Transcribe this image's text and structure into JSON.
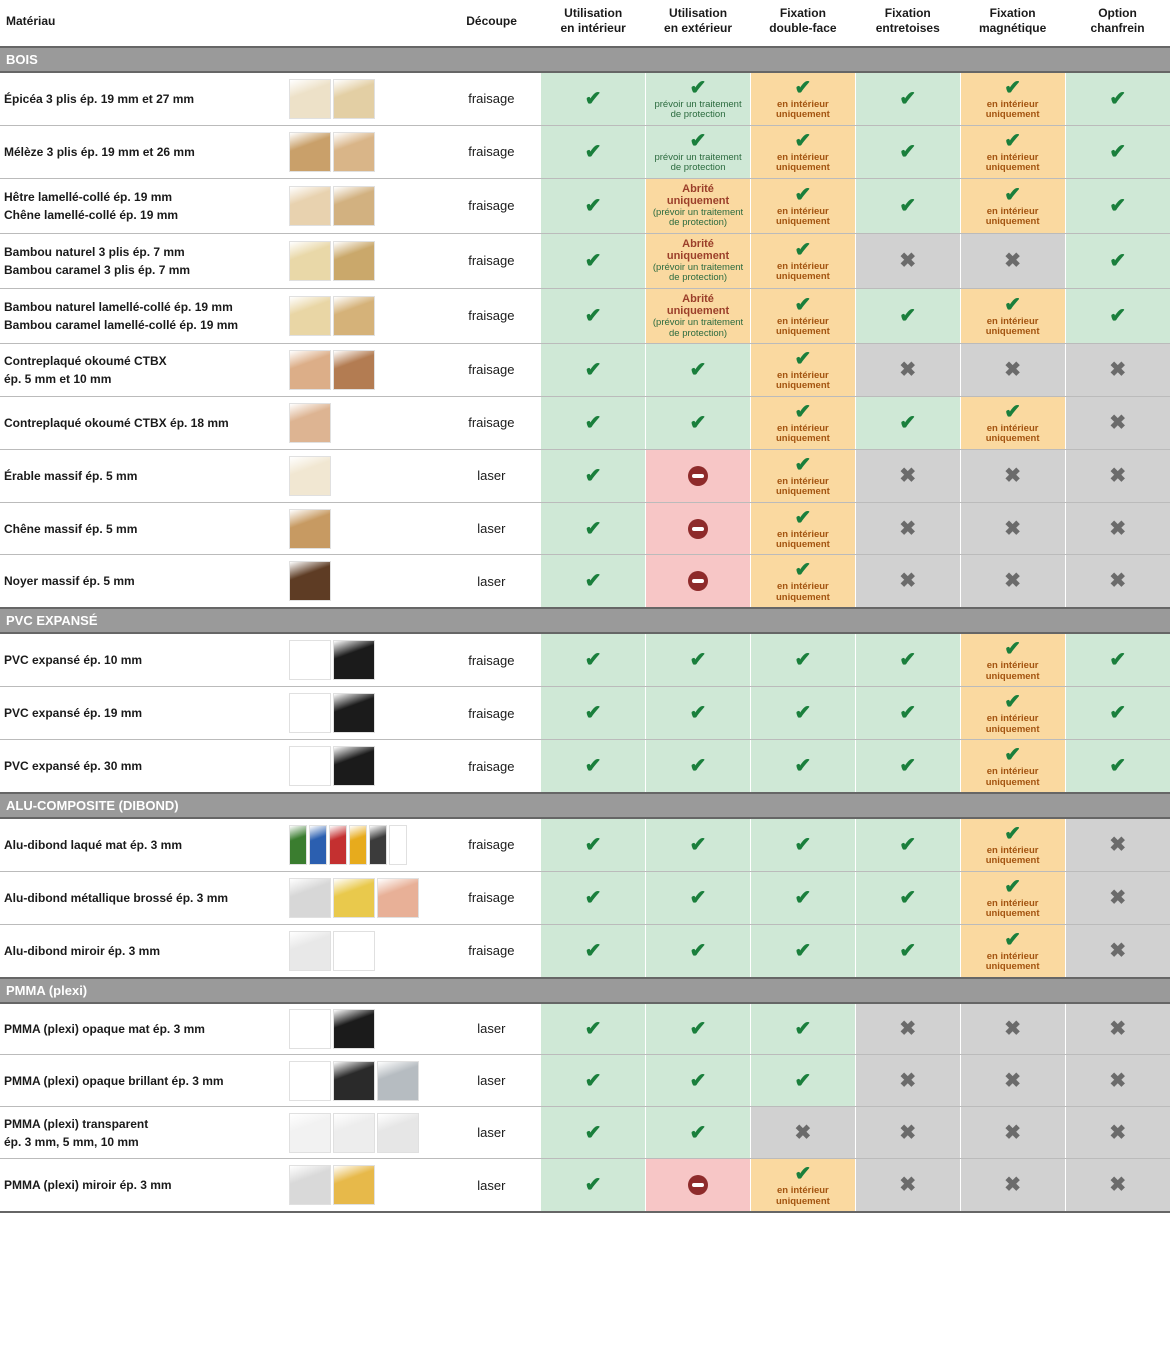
{
  "columns": {
    "material": "Matériau",
    "decoupe": "Découpe",
    "interior": "Utilisation\nen intérieur",
    "exterior": "Utilisation\nen extérieur",
    "doubleface": "Fixation\ndouble-face",
    "spacers": "Fixation\nentretoises",
    "magnetic": "Fixation\nmagnétique",
    "chamfer": "Option\nchanfrein"
  },
  "notes": {
    "protect": "prévoir un traitement de protection",
    "indoor_only": "en intérieur uniquement",
    "sheltered_headline": "Abrité uniquement",
    "sheltered_sub": "(prévoir un traitement de protection)"
  },
  "colors": {
    "green_bg": "#cfe8d6",
    "orange_bg": "#fad9a0",
    "red_bg": "#f7c6c6",
    "grey_bg": "#d1d1d1",
    "section_bg": "#9a9a9a",
    "check_green": "#1a7f3c",
    "cross_grey": "#6b6b6b",
    "no_red": "#8e2b2b",
    "orange_text": "#a35410"
  },
  "swatch_palettes": {
    "spruce": [
      "#ede1c8",
      "#e3cfa4"
    ],
    "larch": [
      "#c9a06a",
      "#d9b588"
    ],
    "beech_oak": [
      "#e8d2af",
      "#d2b180"
    ],
    "bamboo_nat": [
      "#e9d8a8",
      "#caa86b"
    ],
    "bamboo_lam": [
      "#e9d6a5",
      "#d5b279"
    ],
    "okoume_thin": [
      "#dcae88",
      "#b37c52"
    ],
    "okoume_18": [
      "#ddb492"
    ],
    "maple": [
      "#f1e7d2"
    ],
    "oak": [
      "#c79a62"
    ],
    "walnut": [
      "#5e3c24"
    ],
    "pvc": [
      "#ffffff",
      "#1b1b1b"
    ],
    "dibond_color": [
      "#3a7d2f",
      "#2b5fb0",
      "#c43030",
      "#e7ab1d",
      "#3b3b3b",
      "#ffffff"
    ],
    "dibond_brush": [
      "#d7d7d7",
      "#e9c94c",
      "#e8b097"
    ],
    "dibond_mirror": [
      "#e8e8e8",
      "#ffffff"
    ],
    "plexi_matte": [
      "#ffffff",
      "#1b1b1b"
    ],
    "plexi_gloss": [
      "#ffffff",
      "#2a2a2a",
      "#b6bcc1"
    ],
    "plexi_clear": [
      "#f2f2f2",
      "#ededed",
      "#e6e6e6"
    ],
    "plexi_mirror": [
      "#d9d9d9",
      "#e7b94a"
    ]
  },
  "sections": [
    {
      "title": "BOIS",
      "rows": [
        {
          "name": "Épicéa 3 plis ép. 19 mm et 27 mm",
          "swatch": "spruce",
          "decoupe": "fraisage",
          "cells": [
            {
              "t": "check",
              "bg": "green"
            },
            {
              "t": "check",
              "bg": "green",
              "note": "protect"
            },
            {
              "t": "check",
              "bg": "orange",
              "note": "indoor"
            },
            {
              "t": "check",
              "bg": "green"
            },
            {
              "t": "check",
              "bg": "orange",
              "note": "indoor"
            },
            {
              "t": "check",
              "bg": "green"
            }
          ]
        },
        {
          "name": "Mélèze 3 plis ép. 19 mm et 26 mm",
          "swatch": "larch",
          "decoupe": "fraisage",
          "cells": [
            {
              "t": "check",
              "bg": "green"
            },
            {
              "t": "check",
              "bg": "green",
              "note": "protect"
            },
            {
              "t": "check",
              "bg": "orange",
              "note": "indoor"
            },
            {
              "t": "check",
              "bg": "green"
            },
            {
              "t": "check",
              "bg": "orange",
              "note": "indoor"
            },
            {
              "t": "check",
              "bg": "green"
            }
          ]
        },
        {
          "name": "Hêtre lamellé-collé ép. 19 mm\nChêne lamellé-collé ép. 19 mm",
          "swatch": "beech_oak",
          "decoupe": "fraisage",
          "cells": [
            {
              "t": "check",
              "bg": "green"
            },
            {
              "t": "sheltered",
              "bg": "orange"
            },
            {
              "t": "check",
              "bg": "orange",
              "note": "indoor"
            },
            {
              "t": "check",
              "bg": "green"
            },
            {
              "t": "check",
              "bg": "orange",
              "note": "indoor"
            },
            {
              "t": "check",
              "bg": "green"
            }
          ]
        },
        {
          "name": "Bambou naturel 3 plis ép. 7 mm\nBambou caramel 3 plis ép. 7 mm",
          "swatch": "bamboo_nat",
          "decoupe": "fraisage",
          "cells": [
            {
              "t": "check",
              "bg": "green"
            },
            {
              "t": "sheltered",
              "bg": "orange"
            },
            {
              "t": "check",
              "bg": "orange",
              "note": "indoor"
            },
            {
              "t": "cross",
              "bg": "grey"
            },
            {
              "t": "cross",
              "bg": "grey"
            },
            {
              "t": "check",
              "bg": "green"
            }
          ]
        },
        {
          "name": "Bambou naturel lamellé-collé ép. 19 mm\nBambou caramel lamellé-collé ép. 19 mm",
          "swatch": "bamboo_lam",
          "decoupe": "fraisage",
          "cells": [
            {
              "t": "check",
              "bg": "green"
            },
            {
              "t": "sheltered",
              "bg": "orange"
            },
            {
              "t": "check",
              "bg": "orange",
              "note": "indoor"
            },
            {
              "t": "check",
              "bg": "green"
            },
            {
              "t": "check",
              "bg": "orange",
              "note": "indoor"
            },
            {
              "t": "check",
              "bg": "green"
            }
          ]
        },
        {
          "name": "Contreplaqué okoumé CTBX\nép. 5 mm et 10 mm",
          "swatch": "okoume_thin",
          "decoupe": "fraisage",
          "cells": [
            {
              "t": "check",
              "bg": "green"
            },
            {
              "t": "check",
              "bg": "green"
            },
            {
              "t": "check",
              "bg": "orange",
              "note": "indoor"
            },
            {
              "t": "cross",
              "bg": "grey"
            },
            {
              "t": "cross",
              "bg": "grey"
            },
            {
              "t": "cross",
              "bg": "grey"
            }
          ]
        },
        {
          "name": "Contreplaqué okoumé CTBX ép. 18 mm",
          "swatch": "okoume_18",
          "decoupe": "fraisage",
          "cells": [
            {
              "t": "check",
              "bg": "green"
            },
            {
              "t": "check",
              "bg": "green"
            },
            {
              "t": "check",
              "bg": "orange",
              "note": "indoor"
            },
            {
              "t": "check",
              "bg": "green"
            },
            {
              "t": "check",
              "bg": "orange",
              "note": "indoor"
            },
            {
              "t": "cross",
              "bg": "grey"
            }
          ]
        },
        {
          "name": "Érable massif ép. 5 mm",
          "swatch": "maple",
          "decoupe": "laser",
          "cells": [
            {
              "t": "check",
              "bg": "green"
            },
            {
              "t": "no",
              "bg": "red"
            },
            {
              "t": "check",
              "bg": "orange",
              "note": "indoor"
            },
            {
              "t": "cross",
              "bg": "grey"
            },
            {
              "t": "cross",
              "bg": "grey"
            },
            {
              "t": "cross",
              "bg": "grey"
            }
          ]
        },
        {
          "name": "Chêne massif ép. 5 mm",
          "swatch": "oak",
          "decoupe": "laser",
          "cells": [
            {
              "t": "check",
              "bg": "green"
            },
            {
              "t": "no",
              "bg": "red"
            },
            {
              "t": "check",
              "bg": "orange",
              "note": "indoor"
            },
            {
              "t": "cross",
              "bg": "grey"
            },
            {
              "t": "cross",
              "bg": "grey"
            },
            {
              "t": "cross",
              "bg": "grey"
            }
          ]
        },
        {
          "name": "Noyer massif ép. 5 mm",
          "swatch": "walnut",
          "decoupe": "laser",
          "cells": [
            {
              "t": "check",
              "bg": "green"
            },
            {
              "t": "no",
              "bg": "red"
            },
            {
              "t": "check",
              "bg": "orange",
              "note": "indoor"
            },
            {
              "t": "cross",
              "bg": "grey"
            },
            {
              "t": "cross",
              "bg": "grey"
            },
            {
              "t": "cross",
              "bg": "grey"
            }
          ]
        }
      ]
    },
    {
      "title": "PVC EXPANSÉ",
      "rows": [
        {
          "name": "PVC expansé ép. 10 mm",
          "swatch": "pvc",
          "decoupe": "fraisage",
          "cells": [
            {
              "t": "check",
              "bg": "green"
            },
            {
              "t": "check",
              "bg": "green"
            },
            {
              "t": "check",
              "bg": "green"
            },
            {
              "t": "check",
              "bg": "green"
            },
            {
              "t": "check",
              "bg": "orange",
              "note": "indoor"
            },
            {
              "t": "check",
              "bg": "green"
            }
          ]
        },
        {
          "name": "PVC expansé ép. 19 mm",
          "swatch": "pvc",
          "decoupe": "fraisage",
          "cells": [
            {
              "t": "check",
              "bg": "green"
            },
            {
              "t": "check",
              "bg": "green"
            },
            {
              "t": "check",
              "bg": "green"
            },
            {
              "t": "check",
              "bg": "green"
            },
            {
              "t": "check",
              "bg": "orange",
              "note": "indoor"
            },
            {
              "t": "check",
              "bg": "green"
            }
          ]
        },
        {
          "name": "PVC expansé ép. 30 mm",
          "swatch": "pvc",
          "decoupe": "fraisage",
          "cells": [
            {
              "t": "check",
              "bg": "green"
            },
            {
              "t": "check",
              "bg": "green"
            },
            {
              "t": "check",
              "bg": "green"
            },
            {
              "t": "check",
              "bg": "green"
            },
            {
              "t": "check",
              "bg": "orange",
              "note": "indoor"
            },
            {
              "t": "check",
              "bg": "green"
            }
          ]
        }
      ]
    },
    {
      "title": "ALU-COMPOSITE (DIBOND)",
      "rows": [
        {
          "name": "Alu-dibond laqué mat ép. 3 mm",
          "swatch": "dibond_color",
          "decoupe": "fraisage",
          "cells": [
            {
              "t": "check",
              "bg": "green"
            },
            {
              "t": "check",
              "bg": "green"
            },
            {
              "t": "check",
              "bg": "green"
            },
            {
              "t": "check",
              "bg": "green"
            },
            {
              "t": "check",
              "bg": "orange",
              "note": "indoor"
            },
            {
              "t": "cross",
              "bg": "grey"
            }
          ]
        },
        {
          "name": "Alu-dibond métallique brossé ép. 3 mm",
          "swatch": "dibond_brush",
          "decoupe": "fraisage",
          "cells": [
            {
              "t": "check",
              "bg": "green"
            },
            {
              "t": "check",
              "bg": "green"
            },
            {
              "t": "check",
              "bg": "green"
            },
            {
              "t": "check",
              "bg": "green"
            },
            {
              "t": "check",
              "bg": "orange",
              "note": "indoor"
            },
            {
              "t": "cross",
              "bg": "grey"
            }
          ]
        },
        {
          "name": "Alu-dibond miroir ép. 3 mm",
          "swatch": "dibond_mirror",
          "decoupe": "fraisage",
          "cells": [
            {
              "t": "check",
              "bg": "green"
            },
            {
              "t": "check",
              "bg": "green"
            },
            {
              "t": "check",
              "bg": "green"
            },
            {
              "t": "check",
              "bg": "green"
            },
            {
              "t": "check",
              "bg": "orange",
              "note": "indoor"
            },
            {
              "t": "cross",
              "bg": "grey"
            }
          ]
        }
      ]
    },
    {
      "title": "PMMA (plexi)",
      "rows": [
        {
          "name": "PMMA (plexi) opaque mat ép. 3 mm",
          "swatch": "plexi_matte",
          "decoupe": "laser",
          "cells": [
            {
              "t": "check",
              "bg": "green"
            },
            {
              "t": "check",
              "bg": "green"
            },
            {
              "t": "check",
              "bg": "green"
            },
            {
              "t": "cross",
              "bg": "grey"
            },
            {
              "t": "cross",
              "bg": "grey"
            },
            {
              "t": "cross",
              "bg": "grey"
            }
          ]
        },
        {
          "name": "PMMA (plexi) opaque brillant ép. 3 mm",
          "swatch": "plexi_gloss",
          "decoupe": "laser",
          "cells": [
            {
              "t": "check",
              "bg": "green"
            },
            {
              "t": "check",
              "bg": "green"
            },
            {
              "t": "check",
              "bg": "green"
            },
            {
              "t": "cross",
              "bg": "grey"
            },
            {
              "t": "cross",
              "bg": "grey"
            },
            {
              "t": "cross",
              "bg": "grey"
            }
          ]
        },
        {
          "name": "PMMA (plexi) transparent\nép. 3 mm, 5 mm, 10 mm",
          "swatch": "plexi_clear",
          "decoupe": "laser",
          "cells": [
            {
              "t": "check",
              "bg": "green"
            },
            {
              "t": "check",
              "bg": "green"
            },
            {
              "t": "cross",
              "bg": "grey"
            },
            {
              "t": "cross",
              "bg": "grey"
            },
            {
              "t": "cross",
              "bg": "grey"
            },
            {
              "t": "cross",
              "bg": "grey"
            }
          ]
        },
        {
          "name": "PMMA (plexi) miroir ép. 3 mm",
          "swatch": "plexi_mirror",
          "decoupe": "laser",
          "cells": [
            {
              "t": "check",
              "bg": "green"
            },
            {
              "t": "no",
              "bg": "red"
            },
            {
              "t": "check",
              "bg": "orange",
              "note": "indoor"
            },
            {
              "t": "cross",
              "bg": "grey"
            },
            {
              "t": "cross",
              "bg": "grey"
            },
            {
              "t": "cross",
              "bg": "grey"
            }
          ]
        }
      ]
    }
  ]
}
